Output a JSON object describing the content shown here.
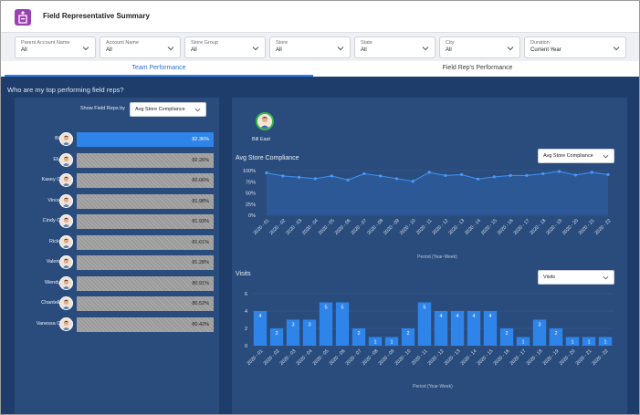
{
  "app": {
    "title": "Field Representative Summary"
  },
  "filters": [
    {
      "label": "Parent Account Name",
      "value": "All"
    },
    {
      "label": "Account Name",
      "value": "All"
    },
    {
      "label": "Store Group",
      "value": "All"
    },
    {
      "label": "Store",
      "value": "All"
    },
    {
      "label": "State",
      "value": "All"
    },
    {
      "label": "City",
      "value": "All"
    },
    {
      "label": "Duration",
      "value": "Current Year"
    }
  ],
  "tabs": [
    {
      "label": "Team Performance",
      "active": true
    },
    {
      "label": "Field Rep's Performance",
      "active": false
    }
  ],
  "question": "Who are my top performing field reps?",
  "left": {
    "show_by_label": "Show Field Reps by",
    "show_by_value": "Avg Store Compliance",
    "reps": [
      {
        "name": "Bill East",
        "value": "82.36%",
        "pct": 82.36,
        "selected": true
      },
      {
        "name": "Ely West",
        "value": "82.26%",
        "pct": 82.26,
        "selected": false
      },
      {
        "name": "Kasey Central",
        "value": "82.06%",
        "pct": 82.06,
        "selected": false
      },
      {
        "name": "Vince West",
        "value": "81.98%",
        "pct": 81.98,
        "selected": false
      },
      {
        "name": "Cindy Central",
        "value": "81.93%",
        "pct": 81.93,
        "selected": false
      },
      {
        "name": "Ricky East",
        "value": "81.61%",
        "pct": 81.61,
        "selected": false
      },
      {
        "name": "Valerie East",
        "value": "81.28%",
        "pct": 81.28,
        "selected": false
      },
      {
        "name": "Wendy West",
        "value": "80.91%",
        "pct": 80.91,
        "selected": false
      },
      {
        "name": "Chantelle Rep",
        "value": "80.52%",
        "pct": 80.52,
        "selected": false
      },
      {
        "name": "Vanessa Central",
        "value": "80.42%",
        "pct": 80.42,
        "selected": false
      }
    ]
  },
  "right": {
    "selected_rep": "Bill East",
    "compliance_select": "Avg Store Compliance",
    "visits_select": "Visits"
  },
  "colors": {
    "accent": "#2f80ed",
    "panel": "#2a4c7c",
    "background": "#1e3d6b",
    "bar": "#2f84ea",
    "line": "#3d8ef0"
  },
  "chart_data": [
    {
      "type": "area",
      "title": "Avg Store Compliance",
      "xlabel": "Period (Year-Week)",
      "ylabel": "",
      "x": [
        "2020 - 01",
        "2020 - 02",
        "2020 - 03",
        "2020 - 04",
        "2020 - 05",
        "2020 - 06",
        "2020 - 07",
        "2020 - 08",
        "2020 - 09",
        "2020 - 10",
        "2020 - 11",
        "2020 - 12",
        "2020 - 13",
        "2020 - 14",
        "2020 - 15",
        "2020 - 16",
        "2020 - 17",
        "2020 - 18",
        "2020 - 19",
        "2020 - 20",
        "2020 - 21",
        "2020 - 22"
      ],
      "values": [
        95,
        88,
        85,
        82,
        88,
        79,
        93,
        88,
        82,
        76,
        96,
        89,
        91,
        81,
        86,
        89,
        89,
        93,
        98,
        90,
        96,
        91
      ],
      "yticks": [
        "0%",
        "25%",
        "50%",
        "75%",
        "100%"
      ],
      "ylim": [
        0,
        100
      ]
    },
    {
      "type": "bar",
      "title": "Visits",
      "xlabel": "Period (Year-Week)",
      "ylabel": "",
      "categories": [
        "2020 - 01",
        "2020 - 02",
        "2020 - 03",
        "2020 - 04",
        "2020 - 05",
        "2020 - 06",
        "2020 - 07",
        "2020 - 08",
        "2020 - 09",
        "2020 - 10",
        "2020 - 11",
        "2020 - 12",
        "2020 - 13",
        "2020 - 14",
        "2020 - 15",
        "2020 - 16",
        "2020 - 17",
        "2020 - 18",
        "2020 - 19",
        "2020 - 20",
        "2020 - 21",
        "2020 - 22"
      ],
      "values": [
        4,
        2,
        3,
        3,
        5,
        5,
        2,
        1,
        1,
        2,
        5,
        4,
        4,
        4,
        4,
        2,
        1,
        3,
        2,
        1,
        1,
        1
      ],
      "yticks": [
        "0",
        "2",
        "4",
        "6"
      ],
      "ylim": [
        0,
        6
      ]
    }
  ]
}
